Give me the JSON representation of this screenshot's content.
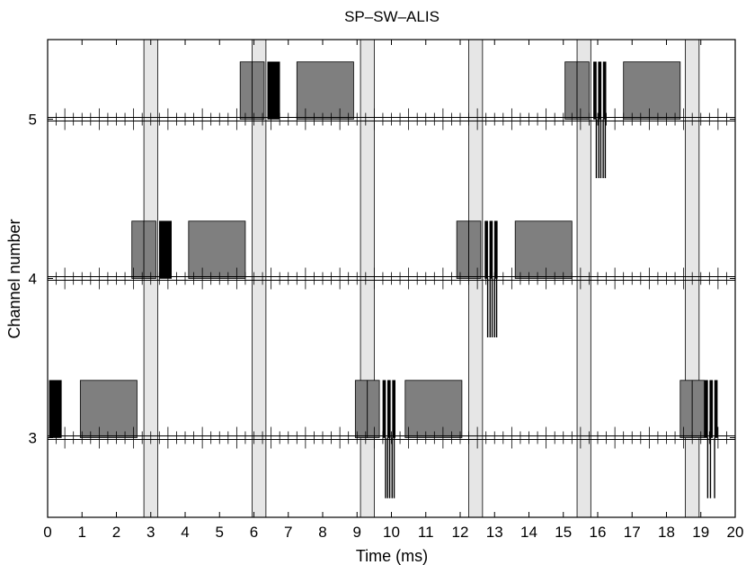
{
  "chart_data": {
    "type": "timeline",
    "title": "SP–SW–ALIS",
    "xlabel": "Time (ms)",
    "ylabel": "Channel number",
    "xlim": [
      0,
      20
    ],
    "ylim": [
      2.5,
      5.5
    ],
    "x_ticks": [
      "0",
      "1",
      "2",
      "3",
      "4",
      "5",
      "6",
      "7",
      "8",
      "9",
      "10",
      "11",
      "12",
      "13",
      "14",
      "15",
      "16",
      "17",
      "18",
      "19",
      "20"
    ],
    "y_ticks": [
      "3",
      "4",
      "5"
    ],
    "grid": false,
    "colors": {
      "slot_block": "#7f7f7f",
      "data_pulse": "#000000",
      "guard_band": "#e6e6e6",
      "axis": "#000000"
    },
    "guard_bands": [
      {
        "start": 2.8,
        "end": 3.2
      },
      {
        "start": 5.95,
        "end": 6.35
      },
      {
        "start": 9.1,
        "end": 9.5
      },
      {
        "start": 12.25,
        "end": 12.65
      },
      {
        "start": 15.4,
        "end": 15.8
      },
      {
        "start": 18.55,
        "end": 18.95
      }
    ],
    "series": [
      {
        "channel": 3,
        "gray_blocks": [
          {
            "start": 0.95,
            "end": 2.6
          },
          {
            "start": 8.95,
            "end": 9.3
          },
          {
            "start": 9.3,
            "end": 9.65
          },
          {
            "start": 10.4,
            "end": 12.05
          },
          {
            "start": 18.4,
            "end": 18.75
          },
          {
            "start": 18.75,
            "end": 19.1
          }
        ],
        "black_pulses": [
          {
            "start": 0.05,
            "end": 0.4
          },
          {
            "start": 9.75,
            "end": 9.83
          },
          {
            "start": 9.89,
            "end": 9.97
          },
          {
            "start": 10.03,
            "end": 10.11
          },
          {
            "start": 19.12,
            "end": 19.2
          },
          {
            "start": 19.26,
            "end": 19.34
          },
          {
            "start": 19.4,
            "end": 19.48
          }
        ],
        "drops": [
          {
            "x": 9.83,
            "to": 2.62
          },
          {
            "x": 9.89,
            "to": 2.62
          },
          {
            "x": 9.95,
            "to": 2.62
          },
          {
            "x": 10.02,
            "to": 2.62
          },
          {
            "x": 10.08,
            "to": 2.62
          },
          {
            "x": 19.2,
            "to": 2.62
          },
          {
            "x": 19.28,
            "to": 2.62
          },
          {
            "x": 19.4,
            "to": 2.62
          }
        ]
      },
      {
        "channel": 4,
        "gray_blocks": [
          {
            "start": 2.45,
            "end": 2.8
          },
          {
            "start": 2.8,
            "end": 3.15
          },
          {
            "start": 4.1,
            "end": 5.75
          },
          {
            "start": 11.9,
            "end": 12.25
          },
          {
            "start": 12.25,
            "end": 12.6
          }
        ],
        "black_pulses": [
          {
            "start": 3.25,
            "end": 3.6
          },
          {
            "start": 12.72,
            "end": 12.8
          },
          {
            "start": 12.86,
            "end": 12.94
          },
          {
            "start": 13.0,
            "end": 13.08
          }
        ],
        "gray_blocks_extra": [
          {
            "start": 13.6,
            "end": 15.25
          }
        ],
        "drops": [
          {
            "x": 12.8,
            "to": 3.63
          },
          {
            "x": 12.87,
            "to": 3.63
          },
          {
            "x": 12.93,
            "to": 3.63
          },
          {
            "x": 13.0,
            "to": 3.63
          },
          {
            "x": 13.06,
            "to": 3.63
          }
        ]
      },
      {
        "channel": 5,
        "gray_blocks": [
          {
            "start": 5.6,
            "end": 5.95
          },
          {
            "start": 5.95,
            "end": 6.3
          },
          {
            "start": 7.25,
            "end": 8.9
          },
          {
            "start": 15.05,
            "end": 15.4
          },
          {
            "start": 15.4,
            "end": 15.75
          },
          {
            "start": 16.75,
            "end": 18.4
          }
        ],
        "black_pulses": [
          {
            "start": 6.4,
            "end": 6.75
          },
          {
            "start": 15.88,
            "end": 15.96
          },
          {
            "start": 16.02,
            "end": 16.1
          },
          {
            "start": 16.16,
            "end": 16.24
          }
        ],
        "drops": [
          {
            "x": 15.96,
            "to": 4.63
          },
          {
            "x": 16.03,
            "to": 4.63
          },
          {
            "x": 16.09,
            "to": 4.63
          },
          {
            "x": 16.16,
            "to": 4.63
          },
          {
            "x": 16.22,
            "to": 4.63
          }
        ]
      }
    ]
  }
}
